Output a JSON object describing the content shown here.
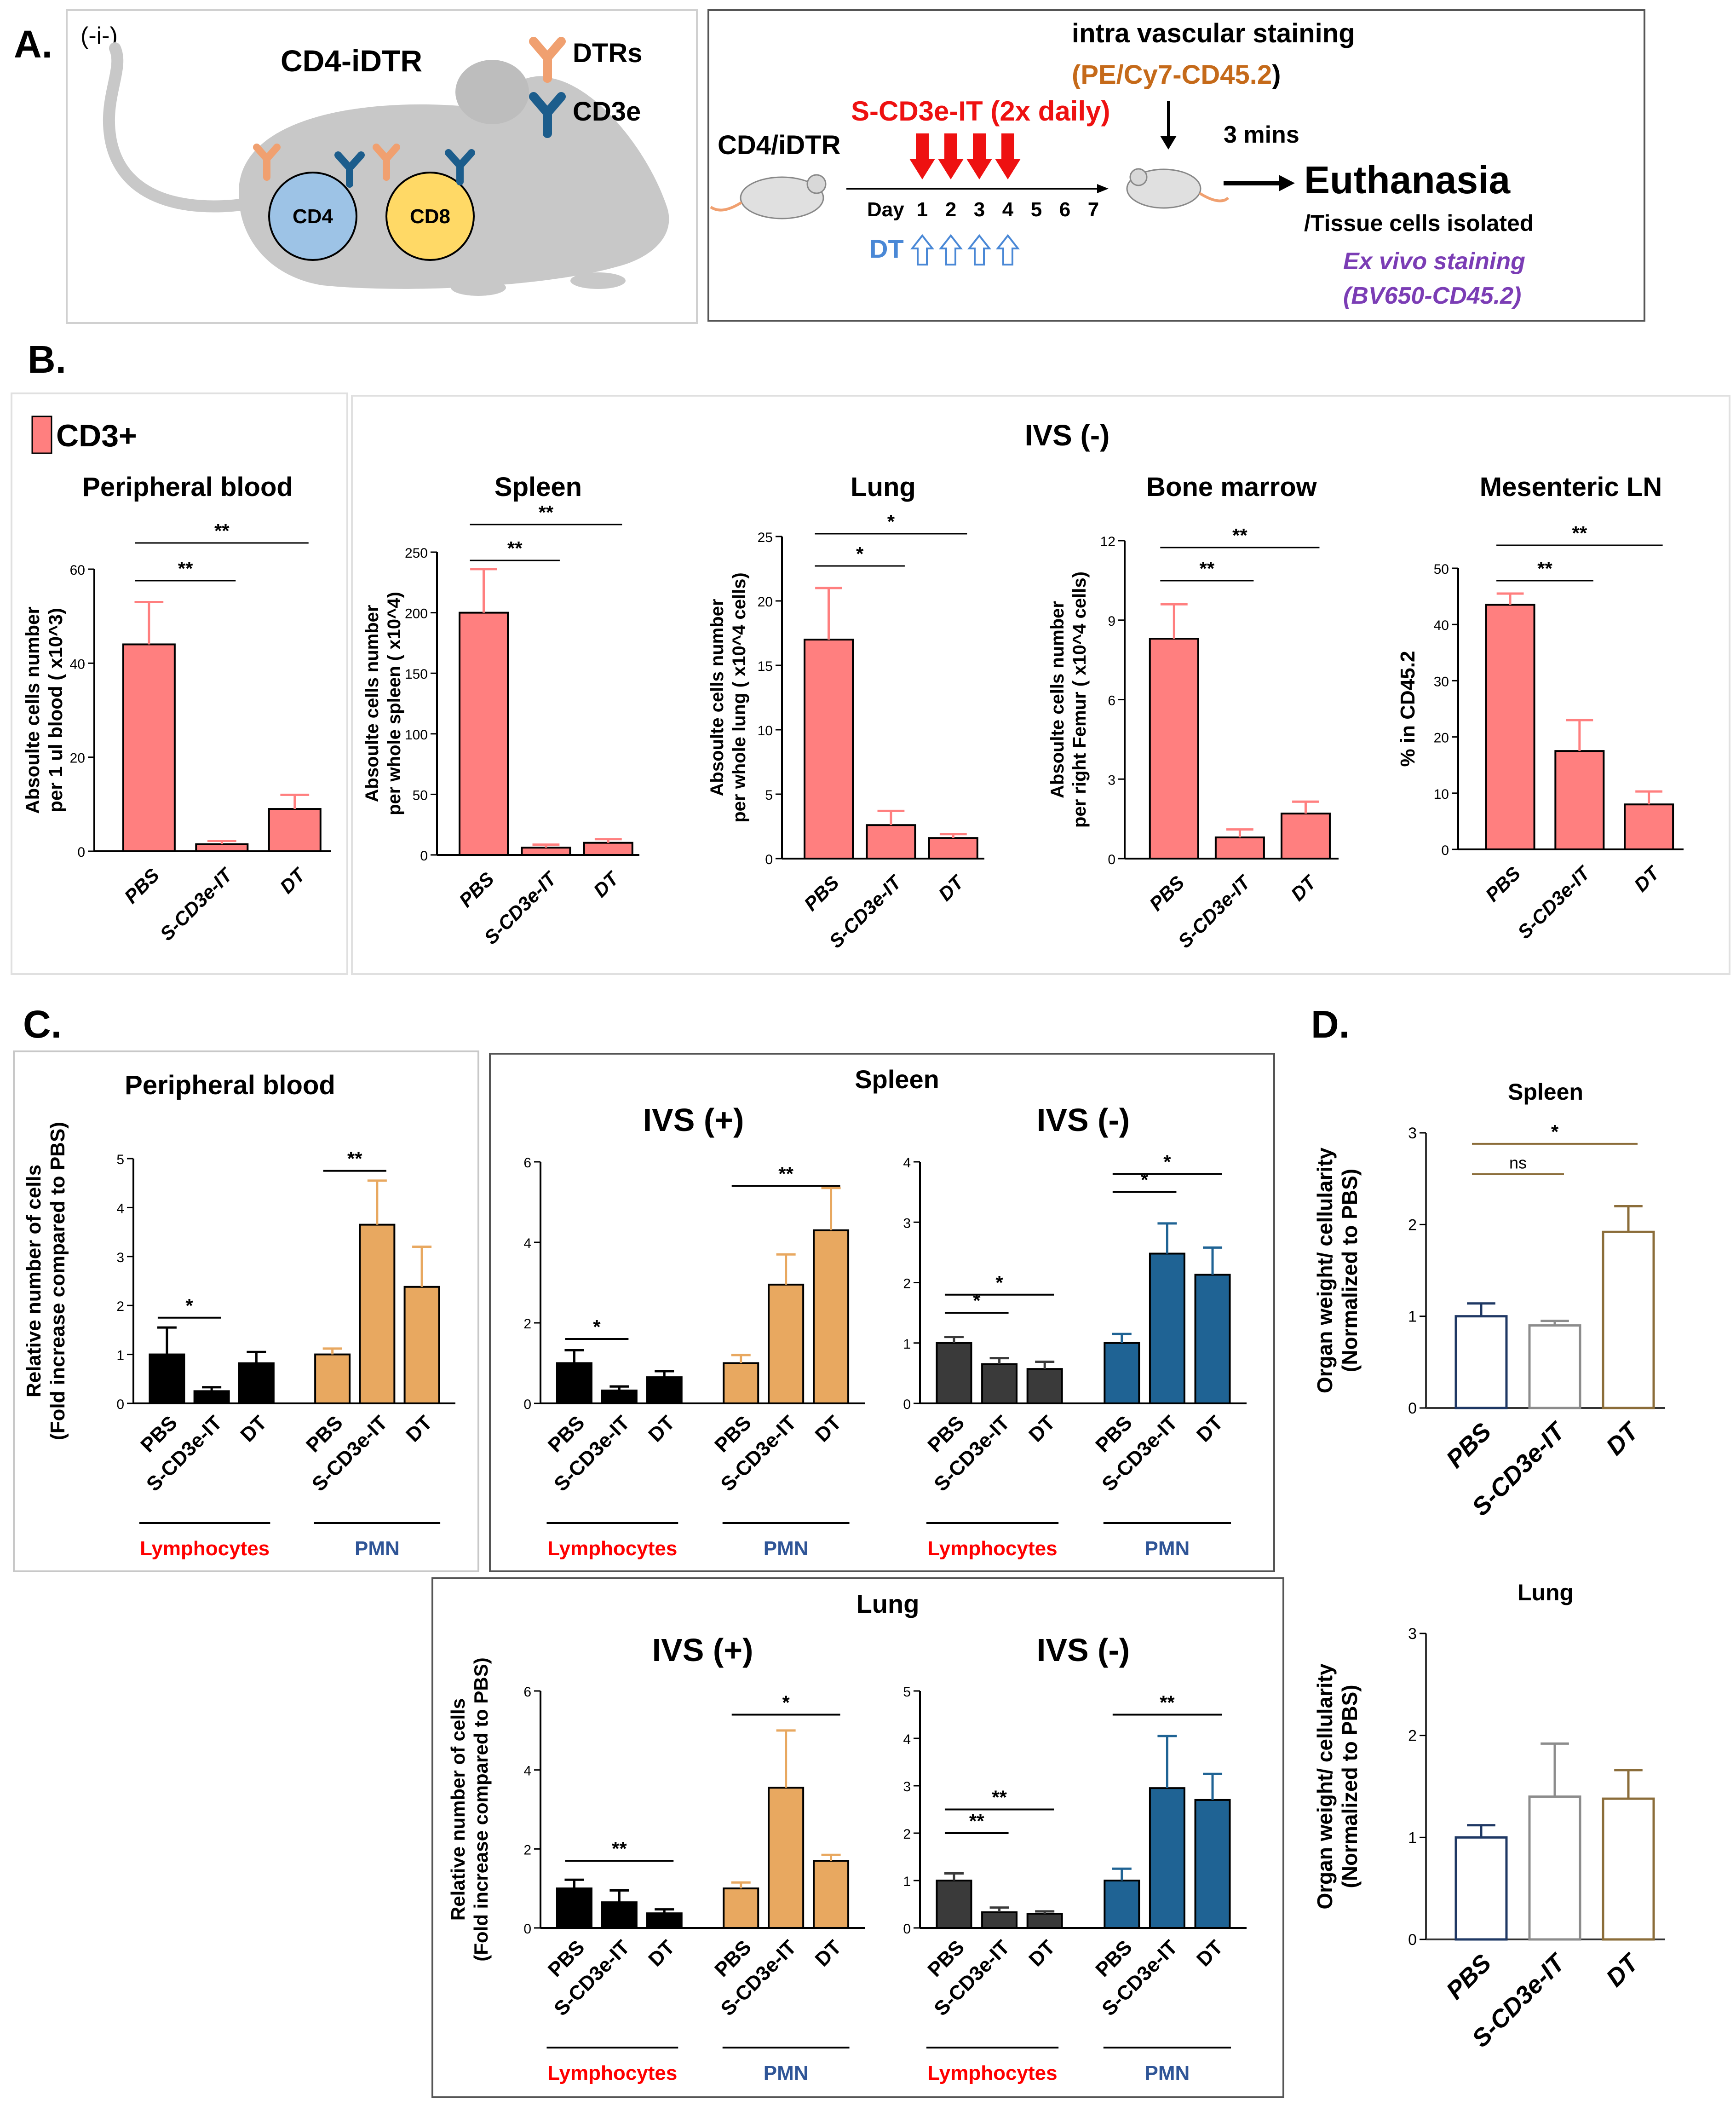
{
  "figure": {
    "panel_labels": {
      "A": "A.",
      "B": "B.",
      "C": "C.",
      "D": "D."
    }
  },
  "panelA": {
    "corner_label": "(-i-)",
    "mouse_title": "CD4-iDTR",
    "cell1": "CD4",
    "cell2": "CD8",
    "legend_dtrs": "DTRs",
    "legend_cd3e": "CD3e",
    "strain": "CD4/iDTR",
    "treatment": "S-CD3e-IT (2x daily)",
    "ivs_title": "intra vascular staining",
    "ivs_stain": "(PE/Cy7-CD45.2",
    "ivs_paren": ")",
    "interval": "3 mins",
    "euthanasia": "Euthanasia",
    "isolated": "/Tissue cells isolated",
    "exvivo1": "Ex vivo staining",
    "exvivo2": "(BV650-CD45.2)",
    "day_label": "Day",
    "days": [
      "1",
      "2",
      "3",
      "4",
      "5",
      "6",
      "7"
    ],
    "dt_label": "DT",
    "colors": {
      "treatment": "#ee1111",
      "dt": "#4a88d6",
      "ivs": "#c56a1a",
      "exvivo": "#7b3db5",
      "dtr": "#f0a070",
      "cd3e": "#1c5d8c",
      "mouse": "#c8c8c8",
      "cd4": "#9dc3e6",
      "cd8": "#ffd966"
    }
  },
  "panelB": {
    "legend": "CD3+",
    "ivs_header": "IVS (-)",
    "color": "#ff7f7f"
  },
  "panelC": {
    "spleen_header": "Spleen",
    "lung_header": "Lung",
    "group_lymph": "Lymphocytes",
    "group_pmn": "PMN",
    "colors": {
      "lymph": "#000000",
      "lymph_ivsneg": "#3a3a3a",
      "pmn": "#e8a860",
      "pmn_ivsneg": "#1f6394",
      "lymph_label": "#ff0000",
      "pmn_label": "#2f5597"
    }
  },
  "panelD": {
    "colors": {
      "PBS": "#1f3864",
      "S-CD3e-IT": "#8c8c8c",
      "DT": "#8b6d3a"
    }
  },
  "chart_data": [
    {
      "id": "B1",
      "type": "bar",
      "title": "Peripheral blood",
      "ylabel": [
        "Absoulte cells number",
        "per 1 ul blood ( x10^3)"
      ],
      "categories": [
        "PBS",
        "S-CD3e-IT",
        "DT"
      ],
      "values": [
        44,
        1.5,
        9
      ],
      "errors": [
        9,
        0.7,
        3
      ],
      "ylim": [
        0,
        60
      ],
      "yticks": [
        "0",
        "20",
        "40",
        "60"
      ],
      "significance": [
        {
          "from": 0,
          "to": 1,
          "label": "**"
        },
        {
          "from": 0,
          "to": 2,
          "label": "**"
        }
      ]
    },
    {
      "id": "B2",
      "type": "bar",
      "title": "Spleen",
      "ylabel": [
        "Absoulte cells number",
        "per whole spleen ( x10^4)"
      ],
      "categories": [
        "PBS",
        "S-CD3e-IT",
        "DT"
      ],
      "values": [
        200,
        6,
        10
      ],
      "errors": [
        36,
        2.5,
        3
      ],
      "ylim": [
        0,
        250
      ],
      "yticks": [
        "0",
        "50",
        "100",
        "150",
        "200",
        "250"
      ],
      "significance": [
        {
          "from": 0,
          "to": 1,
          "label": "**"
        },
        {
          "from": 0,
          "to": 2,
          "label": "**"
        }
      ]
    },
    {
      "id": "B3",
      "type": "bar",
      "title": "Lung",
      "ylabel": [
        "Absoulte cells number",
        "per whole lung ( x10^4 cells)"
      ],
      "categories": [
        "PBS",
        "S-CD3e-IT",
        "DT"
      ],
      "values": [
        17,
        2.6,
        1.6
      ],
      "errors": [
        4,
        1.1,
        0.3
      ],
      "ylim": [
        0,
        25
      ],
      "yticks": [
        "0",
        "5",
        "10",
        "15",
        "20",
        "25"
      ],
      "significance": [
        {
          "from": 0,
          "to": 1,
          "label": "*"
        },
        {
          "from": 0,
          "to": 2,
          "label": "*"
        }
      ]
    },
    {
      "id": "B4",
      "type": "bar",
      "title": "Bone marrow",
      "ylabel": [
        "Absoulte cells number",
        "per right Femur ( x10^4 cells)"
      ],
      "categories": [
        "PBS",
        "S-CD3e-IT",
        "DT"
      ],
      "values": [
        8.3,
        0.8,
        1.7
      ],
      "errors": [
        1.3,
        0.3,
        0.45
      ],
      "ylim": [
        0,
        12
      ],
      "yticks": [
        "0",
        "3",
        "6",
        "9",
        "12"
      ],
      "significance": [
        {
          "from": 0,
          "to": 1,
          "label": "**"
        },
        {
          "from": 0,
          "to": 2,
          "label": "**"
        }
      ]
    },
    {
      "id": "B5",
      "type": "bar",
      "title": "Mesenteric LN",
      "ylabel": [
        "% in CD45.2"
      ],
      "categories": [
        "PBS",
        "S-CD3e-IT",
        "DT"
      ],
      "values": [
        43.5,
        17.5,
        8
      ],
      "errors": [
        2,
        5.5,
        2.3
      ],
      "ylim": [
        0,
        50
      ],
      "yticks": [
        "0",
        "10",
        "20",
        "30",
        "40",
        "50"
      ],
      "significance": [
        {
          "from": 0,
          "to": 1,
          "label": "**"
        },
        {
          "from": 0,
          "to": 2,
          "label": "**"
        }
      ]
    },
    {
      "id": "C1",
      "type": "bar",
      "title": "Peripheral blood",
      "ylabel": [
        "Relative number of cells",
        "(Fold increase compared to PBS)"
      ],
      "categories": [
        "PBS",
        "S-CD3e-IT",
        "DT",
        "PBS",
        "S-CD3e-IT",
        "DT"
      ],
      "groups": [
        "Lymphocytes",
        "PMN"
      ],
      "values": [
        1.0,
        0.25,
        0.82,
        1.0,
        3.65,
        2.38
      ],
      "errors": [
        0.55,
        0.08,
        0.23,
        0.12,
        0.9,
        0.82
      ],
      "ylim": [
        0,
        5
      ],
      "yticks": [
        "0",
        "1",
        "2",
        "3",
        "4",
        "5"
      ],
      "significance": [
        {
          "from": 0,
          "to": 1,
          "label": "*"
        },
        {
          "from": 3,
          "to": 4,
          "label": "**"
        }
      ]
    },
    {
      "id": "C2",
      "type": "bar",
      "title": "IVS (+)",
      "ylabel": [],
      "categories": [
        "PBS",
        "S-CD3e-IT",
        "DT",
        "PBS",
        "S-CD3e-IT",
        "DT"
      ],
      "groups": [
        "Lymphocytes",
        "PMN"
      ],
      "values": [
        1.0,
        0.32,
        0.65,
        1.0,
        2.95,
        4.3
      ],
      "errors": [
        0.32,
        0.1,
        0.15,
        0.2,
        0.75,
        1.05
      ],
      "ylim": [
        0,
        6
      ],
      "yticks": [
        "0",
        "2",
        "4",
        "6"
      ],
      "significance": [
        {
          "from": 0,
          "to": 1,
          "label": "*"
        },
        {
          "from": 3,
          "to": 5,
          "label": "**"
        }
      ]
    },
    {
      "id": "C3",
      "type": "bar",
      "title": "IVS (-)",
      "ylabel": [],
      "categories": [
        "PBS",
        "S-CD3e-IT",
        "DT",
        "PBS",
        "S-CD3e-IT",
        "DT"
      ],
      "groups": [
        "Lymphocytes",
        "PMN"
      ],
      "values": [
        1.0,
        0.65,
        0.57,
        1.0,
        2.48,
        2.13
      ],
      "errors": [
        0.1,
        0.1,
        0.12,
        0.15,
        0.5,
        0.45
      ],
      "ylim": [
        0,
        4
      ],
      "yticks": [
        "0",
        "1",
        "2",
        "3",
        "4"
      ],
      "significance": [
        {
          "from": 0,
          "to": 1,
          "label": "*"
        },
        {
          "from": 0,
          "to": 2,
          "label": "*"
        },
        {
          "from": 3,
          "to": 4,
          "label": "*"
        },
        {
          "from": 3,
          "to": 5,
          "label": "*"
        }
      ]
    },
    {
      "id": "C4",
      "type": "bar",
      "title": "IVS (+)",
      "ylabel": [
        "Relative number of cells",
        "(Fold increase compared to  PBS)"
      ],
      "categories": [
        "PBS",
        "S-CD3e-IT",
        "DT",
        "PBS",
        "S-CD3e-IT",
        "DT"
      ],
      "groups": [
        "Lymphocytes",
        "PMN"
      ],
      "values": [
        1.0,
        0.65,
        0.37,
        1.0,
        3.55,
        1.7
      ],
      "errors": [
        0.22,
        0.3,
        0.1,
        0.15,
        1.45,
        0.15
      ],
      "ylim": [
        0,
        6
      ],
      "yticks": [
        "0",
        "2",
        "4",
        "6"
      ],
      "significance": [
        {
          "from": 0,
          "to": 2,
          "label": "**"
        },
        {
          "from": 3,
          "to": 5,
          "label": "*"
        }
      ]
    },
    {
      "id": "C5",
      "type": "bar",
      "title": "IVS (-)",
      "ylabel": [],
      "categories": [
        "PBS",
        "S-CD3e-IT",
        "DT",
        "PBS",
        "S-CD3e-IT",
        "DT"
      ],
      "groups": [
        "Lymphocytes",
        "PMN"
      ],
      "values": [
        1.0,
        0.33,
        0.3,
        1.0,
        2.95,
        2.7
      ],
      "errors": [
        0.15,
        0.1,
        0.05,
        0.25,
        1.1,
        0.55
      ],
      "ylim": [
        0,
        5
      ],
      "yticks": [
        "0",
        "1",
        "2",
        "3",
        "4",
        "5"
      ],
      "significance": [
        {
          "from": 0,
          "to": 1,
          "label": "**"
        },
        {
          "from": 0,
          "to": 2,
          "label": "**"
        },
        {
          "from": 3,
          "to": 5,
          "label": "**"
        }
      ]
    },
    {
      "id": "D1",
      "type": "bar",
      "title": "Spleen",
      "ylabel": [
        "Organ weight/ cellularity",
        "(Normalized to PBS)"
      ],
      "categories": [
        "PBS",
        "S-CD3e-IT",
        "DT"
      ],
      "values": [
        1.0,
        0.9,
        1.92
      ],
      "errors": [
        0.14,
        0.05,
        0.28
      ],
      "ylim": [
        0,
        3
      ],
      "yticks": [
        "0",
        "1",
        "2",
        "3"
      ],
      "significance": [
        {
          "from": 0,
          "to": 1,
          "label": "ns"
        },
        {
          "from": 0,
          "to": 2,
          "label": "*"
        }
      ]
    },
    {
      "id": "D2",
      "type": "bar",
      "title": "Lung",
      "ylabel": [
        "Organ weight/ cellularity",
        "(Normalized to PBS)"
      ],
      "categories": [
        "PBS",
        "S-CD3e-IT",
        "DT"
      ],
      "values": [
        1.0,
        1.4,
        1.38
      ],
      "errors": [
        0.12,
        0.52,
        0.28
      ],
      "ylim": [
        0,
        3
      ],
      "yticks": [
        "0",
        "1",
        "2",
        "3"
      ],
      "significance": []
    }
  ]
}
